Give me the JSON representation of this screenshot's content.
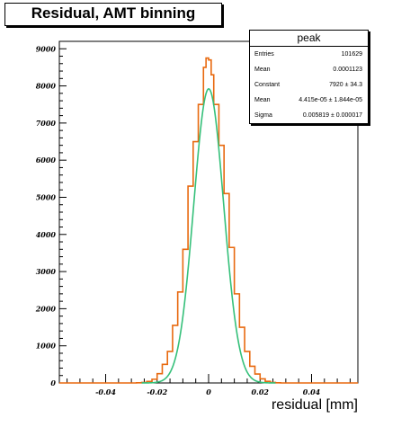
{
  "title": "Residual, AMT binning",
  "stats": {
    "name": "peak",
    "rows": [
      {
        "label": "Entries",
        "value": "101629"
      },
      {
        "label": "Mean",
        "value": "0.0001123"
      },
      {
        "label": "Constant",
        "value": "7920 ± 34.3"
      },
      {
        "label": "Mean",
        "value": "4.415e-05 ± 1.844e-05"
      },
      {
        "label": "Sigma",
        "value": "0.005819 ± 0.000017"
      }
    ]
  },
  "chart_data": {
    "type": "line",
    "title": "Residual, AMT binning",
    "xlabel": "residual [mm]",
    "ylabel": "",
    "xlim": [
      -0.058,
      0.058
    ],
    "ylim": [
      0,
      9200
    ],
    "xticks": [
      -0.04,
      -0.02,
      0,
      0.02,
      0.04
    ],
    "xtick_labels": [
      "-0.04",
      "-0.02",
      "0",
      "0.02",
      "0.04"
    ],
    "yticks": [
      0,
      1000,
      2000,
      3000,
      4000,
      5000,
      6000,
      7000,
      8000,
      9000
    ],
    "ytick_labels": [
      "0",
      "1000",
      "2000",
      "3000",
      "4000",
      "5000",
      "6000",
      "7000",
      "8000",
      "9000"
    ],
    "histogram": {
      "color": "#e8690f",
      "bin_edges": [
        -0.028,
        -0.026,
        -0.024,
        -0.022,
        -0.02,
        -0.018,
        -0.016,
        -0.014,
        -0.012,
        -0.01,
        -0.008,
        -0.006,
        -0.004,
        -0.002,
        -0.001,
        0.0,
        0.001,
        0.002,
        0.004,
        0.006,
        0.008,
        0.01,
        0.012,
        0.014,
        0.016,
        0.018,
        0.02,
        0.022,
        0.024,
        0.026,
        0.028
      ],
      "counts": [
        5,
        15,
        40,
        100,
        250,
        500,
        850,
        1550,
        2450,
        3600,
        5300,
        6500,
        7500,
        8500,
        8750,
        8700,
        8300,
        7500,
        6400,
        5100,
        3650,
        2400,
        1500,
        850,
        450,
        240,
        110,
        45,
        15,
        5
      ]
    },
    "fit": {
      "type": "gaussian",
      "color": "#35c07a",
      "constant": 7920,
      "mean": 4.415e-05,
      "sigma": 0.005819,
      "range": [
        -0.026,
        0.026
      ]
    },
    "grid": false,
    "legend": "none"
  }
}
